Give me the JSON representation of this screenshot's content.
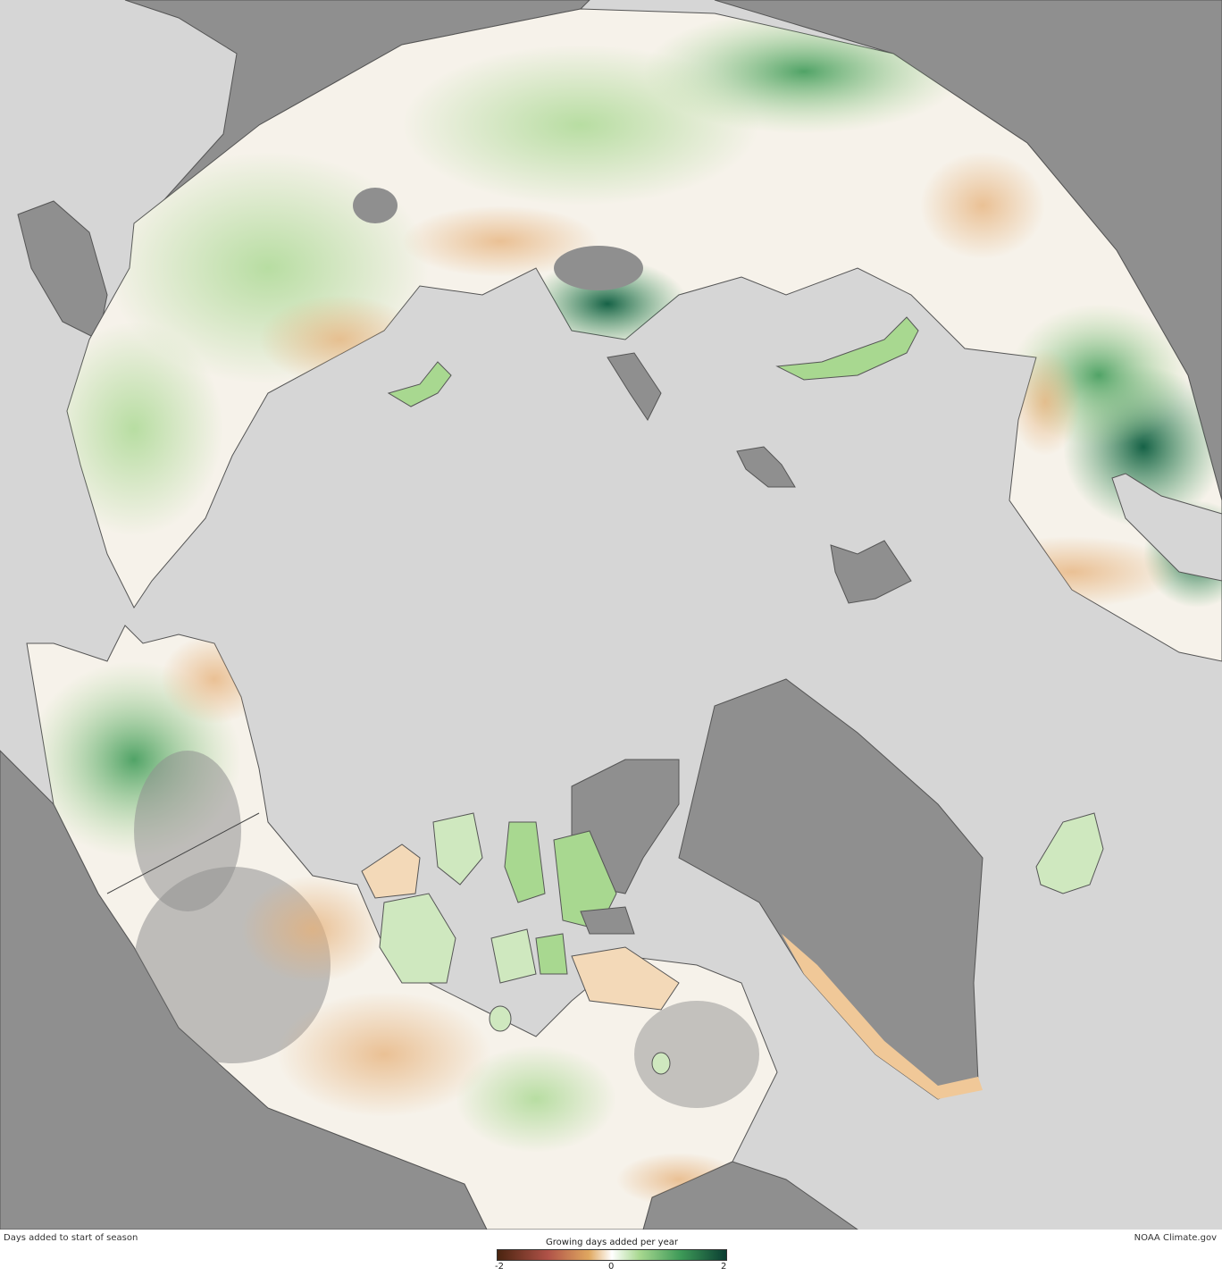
{
  "map": {
    "caption_left": "Days added to start of season",
    "credit": "NOAA Climate.gov",
    "colors": {
      "ocean": "#d6d6d6",
      "no_data_land": "#8f8f8f",
      "neutral_land": "#f6f2ea",
      "gain": "#3e9a58",
      "loss": "#e0a860"
    }
  },
  "legend": {
    "title": "Growing days added per year",
    "min_label": "-2",
    "mid_label": "0",
    "max_label": "2",
    "range": [
      -2,
      2
    ],
    "colors": [
      "#4a2410",
      "#b05248",
      "#e0a860",
      "#ffffff",
      "#a8d890",
      "#3e9a58",
      "#0a3e32"
    ]
  }
}
